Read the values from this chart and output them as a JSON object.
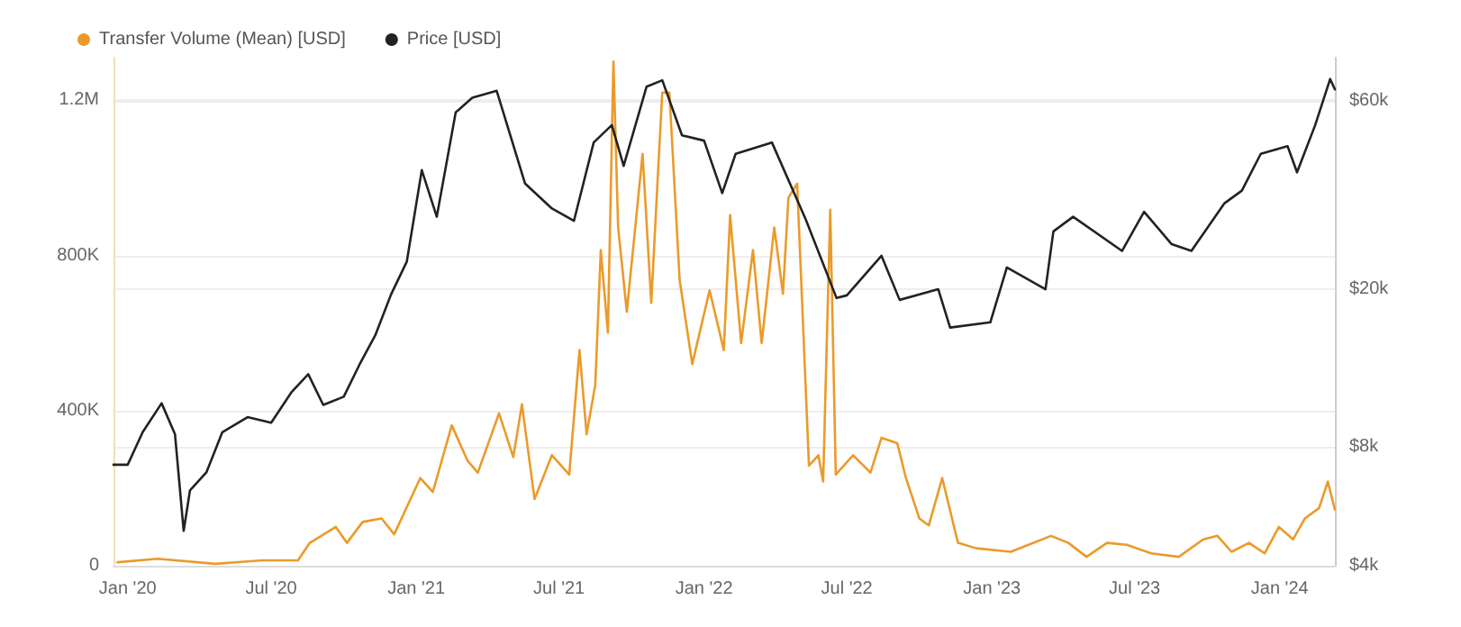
{
  "chart_data": {
    "type": "line",
    "legend": "top left",
    "grid": "y",
    "log": "y2",
    "marker": "none",
    "line_style": "solid",
    "xlim": [
      "2019-12-14",
      "2024-03-11"
    ],
    "xticks": [
      {
        "value": "2020-01-01",
        "label": "Jan '20"
      },
      {
        "value": "2020-07-01",
        "label": "Jul '20"
      },
      {
        "value": "2021-01-01",
        "label": "Jan '21"
      },
      {
        "value": "2021-07-01",
        "label": "Jul '21"
      },
      {
        "value": "2022-01-01",
        "label": "Jan '22"
      },
      {
        "value": "2022-07-01",
        "label": "Jul '22"
      },
      {
        "value": "2023-01-01",
        "label": "Jan '23"
      },
      {
        "value": "2023-07-01",
        "label": "Jul '23"
      },
      {
        "value": "2024-01-01",
        "label": "Jan '24"
      }
    ],
    "ylim": [
      0,
      1310000
    ],
    "yticks": [
      0,
      {
        "value": 400000,
        "label": "400K"
      },
      {
        "value": 800000,
        "label": "800K"
      },
      {
        "value": 1200000,
        "label": "1.2M"
      }
    ],
    "y2lim": [
      4000,
      77000
    ],
    "y2ticks": [
      {
        "value": 4000,
        "label": "$4k"
      },
      {
        "value": 8000,
        "label": "$8k"
      },
      {
        "value": 20000,
        "label": "$20k"
      },
      {
        "value": 60000,
        "label": "$60k"
      }
    ],
    "series": [
      {
        "name": "Transfer Volume (Mean) [USD]",
        "color": "#eb9a2a",
        "x": [
          "2019-12-19",
          "2020-02-08",
          "2020-04-21",
          "2020-06-20",
          "2020-08-04",
          "2020-08-19",
          "2020-09-21",
          "2020-10-05",
          "2020-10-25",
          "2020-11-18",
          "2020-12-04",
          "2021-01-06",
          "2021-01-22",
          "2021-02-15",
          "2021-03-07",
          "2021-03-20",
          "2021-04-16",
          "2021-05-04",
          "2021-05-15",
          "2021-05-31",
          "2021-06-22",
          "2021-07-14",
          "2021-07-27",
          "2021-08-05",
          "2021-08-16",
          "2021-08-23",
          "2021-09-01",
          "2021-09-08",
          "2021-09-14",
          "2021-09-25",
          "2021-10-15",
          "2021-10-26",
          "2021-11-04",
          "2021-11-09",
          "2021-11-18",
          "2021-12-01",
          "2021-12-17",
          "2022-01-08",
          "2022-01-26",
          "2022-02-03",
          "2022-02-17",
          "2022-03-04",
          "2022-03-15",
          "2022-03-31",
          "2022-04-11",
          "2022-04-18",
          "2022-04-29",
          "2022-05-14",
          "2022-05-26",
          "2022-06-01",
          "2022-06-10",
          "2022-06-17",
          "2022-07-09",
          "2022-07-31",
          "2022-08-14",
          "2022-09-03",
          "2022-09-14",
          "2022-10-01",
          "2022-10-13",
          "2022-10-30",
          "2022-11-19",
          "2022-12-12",
          "2023-01-25",
          "2023-03-17",
          "2023-04-08",
          "2023-05-01",
          "2023-05-27",
          "2023-06-21",
          "2023-07-22",
          "2023-08-26",
          "2023-09-26",
          "2023-10-14",
          "2023-11-01",
          "2023-11-23",
          "2023-12-13",
          "2023-12-31",
          "2024-01-18",
          "2024-02-02",
          "2024-02-20",
          "2024-03-02",
          "2024-03-11"
        ],
        "values": [
          9000,
          18000,
          5000,
          14000,
          14000,
          59000,
          100000,
          59000,
          113000,
          122000,
          81000,
          226000,
          190000,
          362000,
          271000,
          240000,
          393000,
          280000,
          416000,
          172000,
          285000,
          235000,
          556000,
          339000,
          466000,
          814000,
          601000,
          1300000,
          872000,
          655000,
          1062000,
          678000,
          1031000,
          1220000,
          1220000,
          737000,
          520000,
          710000,
          556000,
          904000,
          574000,
          814000,
          574000,
          872000,
          701000,
          949000,
          985000,
          258000,
          285000,
          217000,
          918000,
          235000,
          285000,
          240000,
          330000,
          316000,
          226000,
          122000,
          104000,
          226000,
          59000,
          45000,
          36000,
          77000,
          59000,
          23000,
          59000,
          54000,
          32000,
          23000,
          68000,
          77000,
          36000,
          59000,
          32000,
          100000,
          68000,
          122000,
          149000,
          217000,
          145000
        ]
      },
      {
        "name": "Price [USD]",
        "color": "#222222",
        "axis": "y2",
        "x": [
          "2019-12-14",
          "2020-01-01",
          "2020-01-20",
          "2020-02-13",
          "2020-03-01",
          "2020-03-12",
          "2020-03-20",
          "2020-04-10",
          "2020-04-30",
          "2020-06-01",
          "2020-07-01",
          "2020-07-27",
          "2020-08-17",
          "2020-09-05",
          "2020-10-01",
          "2020-10-21",
          "2020-11-10",
          "2020-11-30",
          "2020-12-20",
          "2021-01-08",
          "2021-01-27",
          "2021-02-20",
          "2021-03-13",
          "2021-04-13",
          "2021-05-19",
          "2021-06-22",
          "2021-07-20",
          "2021-08-14",
          "2021-09-06",
          "2021-09-21",
          "2021-10-20",
          "2021-11-09",
          "2021-12-04",
          "2022-01-01",
          "2022-01-24",
          "2022-02-10",
          "2022-03-28",
          "2022-05-10",
          "2022-06-18",
          "2022-07-01",
          "2022-08-14",
          "2022-09-06",
          "2022-10-25",
          "2022-11-09",
          "2022-12-30",
          "2023-01-20",
          "2023-03-10",
          "2023-03-20",
          "2023-04-14",
          "2023-06-15",
          "2023-07-13",
          "2023-08-17",
          "2023-09-11",
          "2023-10-23",
          "2023-11-14",
          "2023-12-08",
          "2024-01-11",
          "2024-01-23",
          "2024-02-15",
          "2024-03-05",
          "2024-03-11"
        ],
        "values": [
          7200,
          7200,
          8700,
          10300,
          8600,
          4900,
          6200,
          6900,
          8700,
          9500,
          9200,
          11000,
          12200,
          10200,
          10700,
          12900,
          15300,
          19400,
          23500,
          40000,
          30500,
          56000,
          61000,
          63500,
          37000,
          32000,
          29800,
          47000,
          52000,
          41000,
          65000,
          67500,
          49000,
          47500,
          35000,
          44000,
          47000,
          30000,
          19000,
          19300,
          24300,
          18800,
          20000,
          16000,
          16500,
          22700,
          20000,
          28000,
          30500,
          25000,
          31400,
          26000,
          25000,
          33000,
          35500,
          44000,
          46000,
          39500,
          52000,
          68000,
          64000
        ]
      }
    ]
  }
}
